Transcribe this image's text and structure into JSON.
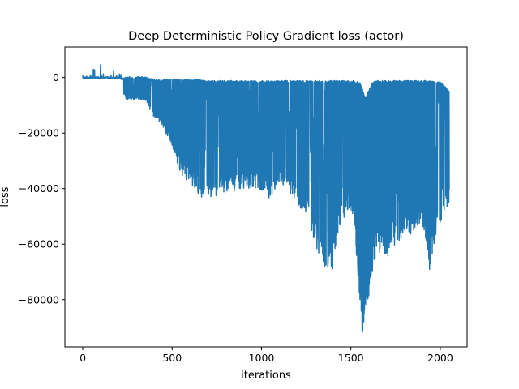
{
  "chart_data": {
    "type": "line",
    "title": "Deep Deterministic Policy Gradient loss (actor)",
    "xlabel": "iterations",
    "ylabel": "loss",
    "xlim": [
      -100,
      2150
    ],
    "ylim": [
      -97000,
      11000
    ],
    "xticks": [
      {
        "value": 0,
        "label": "0"
      },
      {
        "value": 500,
        "label": "500"
      },
      {
        "value": 1000,
        "label": "1000"
      },
      {
        "value": 1500,
        "label": "1500"
      },
      {
        "value": 2000,
        "label": "2000"
      }
    ],
    "yticks": [
      {
        "value": 0,
        "label": "0"
      },
      {
        "value": -20000,
        "label": "−20000"
      },
      {
        "value": -40000,
        "label": "−40000"
      },
      {
        "value": -60000,
        "label": "−60000"
      },
      {
        "value": -80000,
        "label": "−80000"
      }
    ],
    "grid": false,
    "line_color": "#1f77b4",
    "series": [
      {
        "values_note": "",
        "envelope": [
          [
            0,
            -1000,
            1000
          ],
          [
            50,
            -500,
            2500
          ],
          [
            100,
            -500,
            6000
          ],
          [
            150,
            -200,
            5500
          ],
          [
            200,
            -500,
            2000
          ],
          [
            240,
            -8000,
            0
          ],
          [
            300,
            -8000,
            0
          ],
          [
            350,
            -8000,
            0
          ],
          [
            400,
            -15000,
            -1000
          ],
          [
            450,
            -18000,
            -1000
          ],
          [
            500,
            -25000,
            -1000
          ],
          [
            550,
            -35000,
            -1000
          ],
          [
            600,
            -38000,
            -1000
          ],
          [
            650,
            -42000,
            -1000
          ],
          [
            680,
            -44000,
            -1500
          ],
          [
            720,
            -44000,
            -1500
          ],
          [
            800,
            -42000,
            -1500
          ],
          [
            900,
            -40000,
            -1500
          ],
          [
            980,
            -40000,
            -1500
          ],
          [
            1050,
            -44000,
            -1500
          ],
          [
            1100,
            -38000,
            -1500
          ],
          [
            1200,
            -45000,
            -1500
          ],
          [
            1260,
            -52000,
            -1500
          ],
          [
            1300,
            -60000,
            -1500
          ],
          [
            1350,
            -68000,
            -1500
          ],
          [
            1400,
            -69000,
            -1500
          ],
          [
            1430,
            -55000,
            -1500
          ],
          [
            1480,
            -48000,
            -1500
          ],
          [
            1520,
            -50000,
            -1500
          ],
          [
            1545,
            -80000,
            -2000
          ],
          [
            1560,
            -93000,
            -3000
          ],
          [
            1580,
            -90000,
            -8000
          ],
          [
            1620,
            -70000,
            -2000
          ],
          [
            1650,
            -62000,
            -1500
          ],
          [
            1700,
            -66000,
            -1500
          ],
          [
            1750,
            -60000,
            -1500
          ],
          [
            1800,
            -58000,
            -1500
          ],
          [
            1850,
            -56000,
            -1500
          ],
          [
            1900,
            -52000,
            -1500
          ],
          [
            1940,
            -71000,
            -1500
          ],
          [
            1970,
            -60000,
            -2000
          ],
          [
            2000,
            -52000,
            -2000
          ],
          [
            2050,
            -45000,
            -5000
          ]
        ]
      }
    ]
  }
}
